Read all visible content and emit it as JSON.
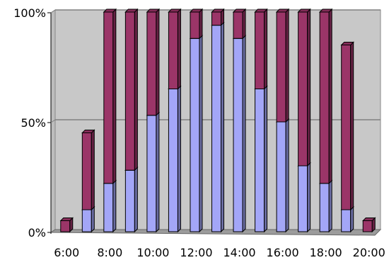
{
  "chart_data": {
    "type": "bar",
    "stacked": true,
    "three_d": true,
    "categories": [
      "6:00",
      "7:00",
      "8:00",
      "9:00",
      "10:00",
      "11:00",
      "12:00",
      "13:00",
      "14:00",
      "15:00",
      "16:00",
      "17:00",
      "18:00",
      "19:00",
      "20:00"
    ],
    "x_tick_labels": [
      "6:00",
      "8:00",
      "10:00",
      "12:00",
      "14:00",
      "16:00",
      "18:00",
      "20:00"
    ],
    "y_tick_labels": [
      "0%",
      "50%",
      "100%"
    ],
    "ylim": [
      0,
      100
    ],
    "grid": true,
    "legend": "none",
    "series": [
      {
        "color": "#a3a6f7",
        "values": [
          0,
          10,
          22,
          28,
          53,
          65,
          88,
          94,
          88,
          65,
          50,
          30,
          22,
          10,
          0
        ]
      },
      {
        "color": "#9b3568",
        "values": [
          5,
          35,
          78,
          72,
          47,
          35,
          12,
          6,
          12,
          35,
          50,
          70,
          78,
          75,
          5
        ]
      }
    ],
    "colors": {
      "wall": "#c8c8c8",
      "floor": "#9c9c9c",
      "gridline": "#808080"
    }
  }
}
